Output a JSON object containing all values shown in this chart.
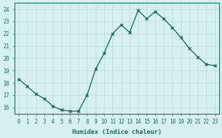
{
  "x": [
    0,
    1,
    2,
    3,
    4,
    5,
    6,
    7,
    8,
    9,
    10,
    11,
    12,
    13,
    14,
    15,
    16,
    17,
    18,
    19,
    20,
    21,
    22,
    23
  ],
  "y": [
    18.3,
    17.7,
    17.1,
    16.7,
    16.1,
    15.8,
    15.7,
    15.7,
    17.0,
    19.1,
    20.4,
    22.0,
    22.7,
    22.1,
    23.9,
    23.2,
    23.8,
    23.2,
    22.5,
    21.7,
    20.8,
    20.1,
    19.5,
    19.4
  ],
  "xlabel": "Humidex (Indice chaleur)",
  "xlim": [
    -0.5,
    23.5
  ],
  "ylim": [
    15.5,
    24.5
  ],
  "yticks": [
    16,
    17,
    18,
    19,
    20,
    21,
    22,
    23,
    24
  ],
  "xticks": [
    0,
    1,
    2,
    3,
    4,
    5,
    6,
    7,
    8,
    9,
    10,
    11,
    12,
    13,
    14,
    15,
    16,
    17,
    18,
    19,
    20,
    21,
    22,
    23
  ],
  "line_color": "#1a6b5a",
  "marker_color": "#1a6b5a",
  "bg_color": "#d6f0ef",
  "grid_color": "#b8d8d5",
  "axis_color": "#1a6b5a",
  "label_color": "#1a6b5a"
}
